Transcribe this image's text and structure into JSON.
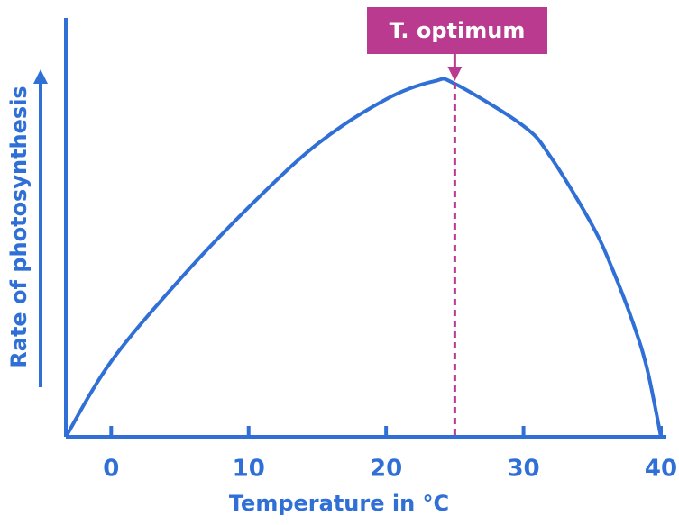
{
  "chart_data": {
    "type": "line",
    "x_label": "Temperature in °C",
    "y_label": "Rate of photosynthesis",
    "x": [
      -3.3,
      0,
      5,
      10,
      15,
      20,
      23.5,
      25,
      30,
      32,
      35,
      36.5,
      38,
      39,
      40
    ],
    "series": [
      {
        "color": "#2f6fd6",
        "values": [
          0,
          18,
          37.6,
          54.8,
          69.9,
          80.6,
          84.9,
          84.3,
          74.2,
          66.7,
          50.5,
          39.8,
          26.9,
          16.1,
          0
        ]
      }
    ],
    "xlim": [
      -3.3,
      40
    ],
    "ylim": [
      0,
      100
    ],
    "xticks": [
      0,
      10,
      20,
      30,
      40
    ],
    "annotation": {
      "text": "T. optimum",
      "x": 25,
      "color": "#b93a8e"
    }
  }
}
